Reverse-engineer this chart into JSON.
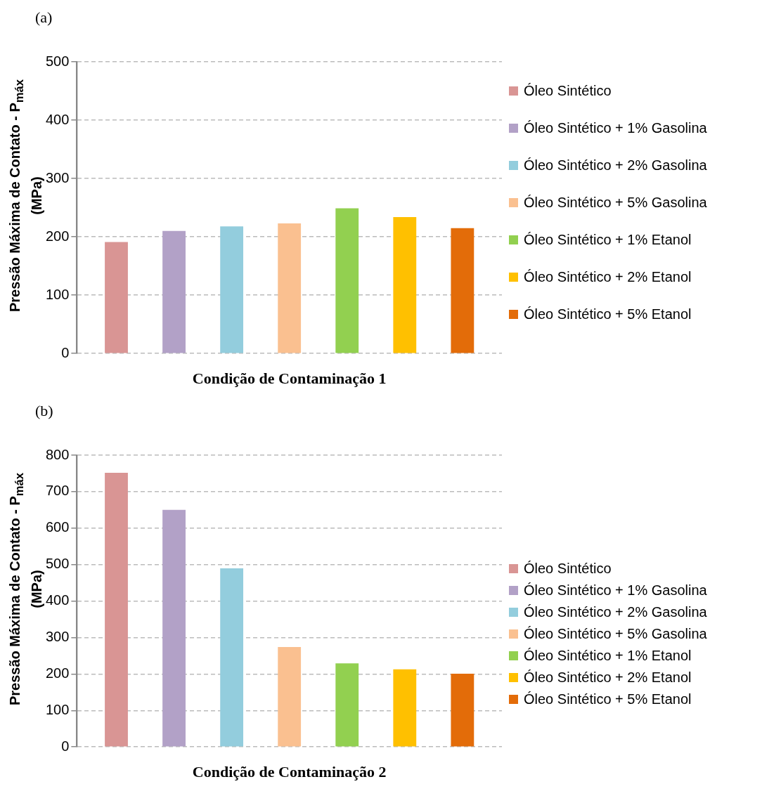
{
  "chart_data": [
    {
      "type": "bar",
      "title": "(a)",
      "xlabel": "Condição de Contaminação 1",
      "ylabel": "Pressão Máxima de Contato - P$_{máx}$ (MPa)",
      "categories": [
        null
      ],
      "series": [
        {
          "name": "Óleo Sintético",
          "color": "#d99594",
          "values": [
            191
          ]
        },
        {
          "name": "Óleo Sintético + 1% Gasolina",
          "color": "#b2a1c7",
          "values": [
            210
          ]
        },
        {
          "name": "Óleo Sintético + 2% Gasolina",
          "color": "#93cddd",
          "values": [
            218
          ]
        },
        {
          "name": "Óleo Sintético + 5% Gasolina",
          "color": "#fac090",
          "values": [
            223
          ]
        },
        {
          "name": "Óleo Sintético + 1% Etanol",
          "color": "#92d050",
          "values": [
            249
          ]
        },
        {
          "name": "Óleo Sintético + 2% Etanol",
          "color": "#ffc000",
          "values": [
            234
          ]
        },
        {
          "name": "Óleo Sintético + 5% Etanol",
          "color": "#e36c09",
          "values": [
            215
          ]
        }
      ],
      "ylim": [
        0,
        500
      ],
      "yticks": [
        0,
        100,
        200,
        300,
        400,
        500
      ],
      "grid": "y",
      "legend": "right"
    },
    {
      "type": "bar",
      "title": "(b)",
      "xlabel": "Condição de Contaminação 2",
      "ylabel": "Pressão Máxima de Contato - P$_{máx}$ (MPa)",
      "categories": [
        null
      ],
      "series": [
        {
          "name": "Óleo Sintético",
          "color": "#d99594",
          "values": [
            752
          ]
        },
        {
          "name": "Óleo Sintético + 1% Gasolina",
          "color": "#b2a1c7",
          "values": [
            650
          ]
        },
        {
          "name": "Óleo Sintético + 2% Gasolina",
          "color": "#93cddd",
          "values": [
            490
          ]
        },
        {
          "name": "Óleo Sintético + 5% Gasolina",
          "color": "#fac090",
          "values": [
            274
          ]
        },
        {
          "name": "Óleo Sintético + 1% Etanol",
          "color": "#92d050",
          "values": [
            229
          ]
        },
        {
          "name": "Óleo Sintético + 2% Etanol",
          "color": "#ffc000",
          "values": [
            213
          ]
        },
        {
          "name": "Óleo Sintético + 5% Etanol",
          "color": "#e36c09",
          "values": [
            201
          ]
        }
      ],
      "ylim": [
        0,
        800
      ],
      "yticks": [
        0,
        100,
        200,
        300,
        400,
        500,
        600,
        700,
        800
      ],
      "grid": "y",
      "legend": "right"
    }
  ]
}
